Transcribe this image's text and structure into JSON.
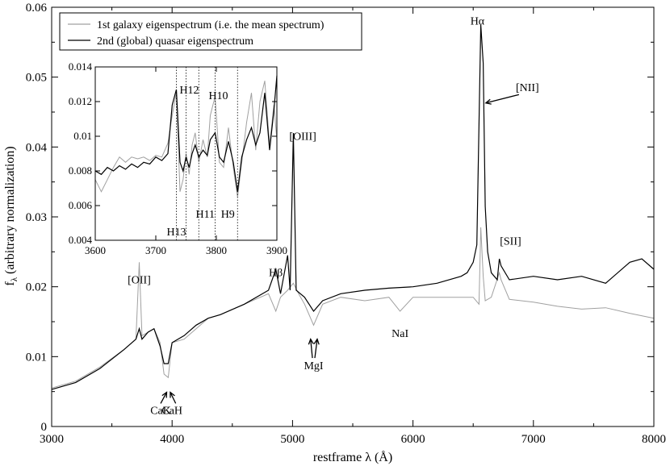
{
  "chart_data": {
    "type": "line",
    "xlabel": "restframe λ (Å)",
    "ylabel": "fλ (arbitrary normalization)",
    "ylabel_main": "f",
    "ylabel_sub": "λ",
    "ylabel_rest": " (arbitrary normalization)",
    "xlim": [
      3000,
      8000
    ],
    "ylim": [
      0,
      0.06
    ],
    "xticks": [
      3000,
      4000,
      5000,
      6000,
      7000,
      8000
    ],
    "xtick_labels": [
      "3000",
      "4000",
      "5000",
      "6000",
      "7000",
      "8000"
    ],
    "yticks": [
      0,
      0.01,
      0.02,
      0.03,
      0.04,
      0.05,
      0.06
    ],
    "ytick_labels": [
      "0",
      "0.01",
      "0.02",
      "0.03",
      "0.04",
      "0.05",
      "0.06"
    ],
    "legend": {
      "position": "top-left",
      "entries": [
        {
          "label": "1st galaxy eigenspectrum (i.e. the mean spectrum)",
          "color": "#a0a0a0"
        },
        {
          "label": "2nd (global) quasar eigenspectrum",
          "color": "#000000"
        }
      ]
    },
    "series": [
      {
        "name": "1st galaxy eigenspectrum (i.e. the mean spectrum)",
        "color": "#a0a0a0",
        "x": [
          3000,
          3200,
          3400,
          3600,
          3700,
          3727,
          3750,
          3800,
          3850,
          3900,
          3933,
          3968,
          4000,
          4100,
          4200,
          4300,
          4400,
          4600,
          4800,
          4861,
          4900,
          4959,
          5007,
          5050,
          5100,
          5175,
          5250,
          5400,
          5600,
          5800,
          5893,
          6000,
          6200,
          6400,
          6500,
          6548,
          6563,
          6583,
          6600,
          6650,
          6717,
          6731,
          6800,
          7000,
          7200,
          7400,
          7600,
          7800,
          8000
        ],
        "y": [
          0.0055,
          0.0065,
          0.0085,
          0.011,
          0.0125,
          0.0235,
          0.013,
          0.0135,
          0.014,
          0.012,
          0.0075,
          0.007,
          0.012,
          0.0125,
          0.014,
          0.0155,
          0.016,
          0.0175,
          0.019,
          0.0165,
          0.0185,
          0.0195,
          0.0205,
          0.019,
          0.0175,
          0.0145,
          0.0175,
          0.0185,
          0.018,
          0.0185,
          0.0165,
          0.0185,
          0.0185,
          0.0185,
          0.0185,
          0.0175,
          0.0285,
          0.0215,
          0.018,
          0.0185,
          0.022,
          0.021,
          0.0182,
          0.0178,
          0.0172,
          0.0168,
          0.017,
          0.0162,
          0.0155
        ]
      },
      {
        "name": "2nd (global) quasar eigenspectrum",
        "color": "#000000",
        "x": [
          3000,
          3200,
          3400,
          3600,
          3700,
          3727,
          3750,
          3800,
          3850,
          3900,
          3933,
          3968,
          4000,
          4100,
          4200,
          4300,
          4400,
          4600,
          4800,
          4861,
          4900,
          4959,
          4980,
          5007,
          5030,
          5100,
          5175,
          5250,
          5400,
          5600,
          5800,
          6000,
          6200,
          6400,
          6450,
          6500,
          6530,
          6563,
          6583,
          6600,
          6620,
          6650,
          6700,
          6717,
          6731,
          6800,
          7000,
          7200,
          7400,
          7600,
          7800,
          7900,
          8000
        ],
        "y": [
          0.0053,
          0.0063,
          0.0083,
          0.011,
          0.0125,
          0.014,
          0.0125,
          0.0135,
          0.014,
          0.0115,
          0.009,
          0.009,
          0.012,
          0.013,
          0.0145,
          0.0155,
          0.016,
          0.0175,
          0.0195,
          0.0225,
          0.019,
          0.0245,
          0.0195,
          0.042,
          0.0195,
          0.0185,
          0.0165,
          0.018,
          0.019,
          0.0195,
          0.0198,
          0.02,
          0.0205,
          0.0215,
          0.022,
          0.0235,
          0.026,
          0.0575,
          0.052,
          0.0315,
          0.025,
          0.022,
          0.021,
          0.024,
          0.023,
          0.021,
          0.0215,
          0.021,
          0.0215,
          0.0205,
          0.0235,
          0.024,
          0.0225
        ]
      }
    ],
    "annotations": [
      {
        "text": "[OII]",
        "x": 3727,
        "y": 0.0205
      },
      {
        "text": "CaK",
        "x": 3905,
        "y": 0.0018
      },
      {
        "text": "CaH",
        "x": 4000,
        "y": 0.0018
      },
      {
        "text": "Hβ",
        "x": 4861,
        "y": 0.0215
      },
      {
        "text": "[OIII]",
        "x": 5085,
        "y": 0.041
      },
      {
        "text": "MgI",
        "x": 5175,
        "y": 0.0082
      },
      {
        "text": "NaI",
        "x": 5893,
        "y": 0.0128
      },
      {
        "text": "Hα",
        "x": 6535,
        "y": 0.0575
      },
      {
        "text": "[NII]",
        "x": 6950,
        "y": 0.048
      },
      {
        "text": "[SII]",
        "x": 6810,
        "y": 0.026
      }
    ],
    "inset": {
      "type": "line",
      "xlim": [
        3600,
        3900
      ],
      "ylim": [
        0.004,
        0.014
      ],
      "xticks": [
        3600,
        3700,
        3800,
        3900
      ],
      "xtick_labels": [
        "3600",
        "3700",
        "3800",
        "3900"
      ],
      "yticks": [
        0.004,
        0.006,
        0.008,
        0.01,
        0.012,
        0.014
      ],
      "ytick_labels": [
        "0.004",
        "0.006",
        "0.008",
        "0.01",
        "0.012",
        "0.014"
      ],
      "lines": [
        {
          "label": "H13",
          "x": 3734
        },
        {
          "label": "H12",
          "x": 3750
        },
        {
          "label": "H11",
          "x": 3771
        },
        {
          "label": "H10",
          "x": 3798
        },
        {
          "label": "H9",
          "x": 3835
        }
      ],
      "series": [
        {
          "name": "1st galaxy eigenspectrum (i.e. the mean spectrum)",
          "color": "#a0a0a0",
          "x": [
            3600,
            3610,
            3620,
            3630,
            3640,
            3650,
            3660,
            3670,
            3680,
            3690,
            3700,
            3710,
            3720,
            3727,
            3734,
            3740,
            3745,
            3750,
            3755,
            3760,
            3765,
            3771,
            3778,
            3785,
            3790,
            3798,
            3805,
            3812,
            3820,
            3828,
            3835,
            3842,
            3850,
            3858,
            3865,
            3872,
            3880,
            3888,
            3895,
            3900
          ],
          "y": [
            0.0075,
            0.0068,
            0.0075,
            0.0082,
            0.0088,
            0.0085,
            0.0088,
            0.0087,
            0.0088,
            0.0086,
            0.0089,
            0.0088,
            0.0096,
            0.0112,
            0.0125,
            0.0068,
            0.0075,
            0.009,
            0.0078,
            0.0095,
            0.0102,
            0.0085,
            0.0098,
            0.0088,
            0.0112,
            0.0123,
            0.0085,
            0.0082,
            0.0105,
            0.0082,
            0.0065,
            0.0085,
            0.0108,
            0.0125,
            0.0092,
            0.012,
            0.0132,
            0.0095,
            0.0118,
            0.0098
          ]
        },
        {
          "name": "2nd (global) quasar eigenspectrum",
          "color": "#000000",
          "x": [
            3600,
            3610,
            3620,
            3630,
            3640,
            3650,
            3660,
            3670,
            3680,
            3690,
            3700,
            3710,
            3720,
            3727,
            3734,
            3740,
            3745,
            3750,
            3755,
            3760,
            3765,
            3771,
            3778,
            3785,
            3790,
            3798,
            3805,
            3812,
            3820,
            3828,
            3835,
            3842,
            3850,
            3858,
            3865,
            3872,
            3880,
            3888,
            3895,
            3900
          ],
          "y": [
            0.008,
            0.0078,
            0.0082,
            0.008,
            0.0083,
            0.0081,
            0.0084,
            0.0082,
            0.0085,
            0.0084,
            0.0088,
            0.0086,
            0.009,
            0.0118,
            0.0127,
            0.0085,
            0.008,
            0.0088,
            0.0082,
            0.009,
            0.0095,
            0.0088,
            0.0092,
            0.0089,
            0.0098,
            0.0102,
            0.0088,
            0.0085,
            0.0097,
            0.0085,
            0.0068,
            0.0088,
            0.0098,
            0.0105,
            0.0095,
            0.0102,
            0.0125,
            0.0092,
            0.0115,
            0.0135
          ]
        }
      ]
    }
  }
}
